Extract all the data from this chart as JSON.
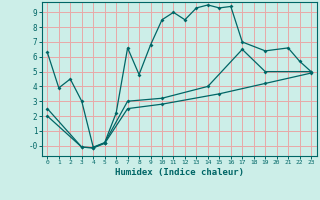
{
  "title": "",
  "xlabel": "Humidex (Indice chaleur)",
  "bg_color": "#cceee8",
  "grid_color": "#e8a8a8",
  "line_color": "#006666",
  "xlim": [
    -0.5,
    23.5
  ],
  "ylim": [
    -0.7,
    9.7
  ],
  "xticks": [
    0,
    1,
    2,
    3,
    4,
    5,
    6,
    7,
    8,
    9,
    10,
    11,
    12,
    13,
    14,
    15,
    16,
    17,
    18,
    19,
    20,
    21,
    22,
    23
  ],
  "yticks": [
    0,
    1,
    2,
    3,
    4,
    5,
    6,
    7,
    8,
    9
  ],
  "ytick_labels": [
    "-0",
    "1",
    "2",
    "3",
    "4",
    "5",
    "6",
    "7",
    "8",
    "9"
  ],
  "line1_x": [
    0,
    1,
    2,
    3,
    4,
    5,
    6,
    7,
    8,
    9,
    10,
    11,
    12,
    13,
    14,
    15,
    16,
    17,
    19,
    21,
    22,
    23
  ],
  "line1_y": [
    6.3,
    3.9,
    4.5,
    3.0,
    -0.1,
    0.2,
    2.2,
    6.6,
    4.8,
    6.8,
    8.5,
    9.0,
    8.5,
    9.3,
    9.5,
    9.3,
    9.4,
    7.0,
    6.4,
    6.6,
    5.7,
    5.0
  ],
  "line2_x": [
    0,
    3,
    4,
    5,
    7,
    10,
    14,
    17,
    19,
    23
  ],
  "line2_y": [
    2.5,
    -0.1,
    -0.15,
    0.2,
    3.0,
    3.2,
    4.0,
    6.5,
    5.0,
    5.0
  ],
  "line3_x": [
    0,
    3,
    4,
    5,
    7,
    10,
    15,
    19,
    23
  ],
  "line3_y": [
    2.0,
    -0.1,
    -0.15,
    0.15,
    2.5,
    2.8,
    3.5,
    4.2,
    4.9
  ]
}
